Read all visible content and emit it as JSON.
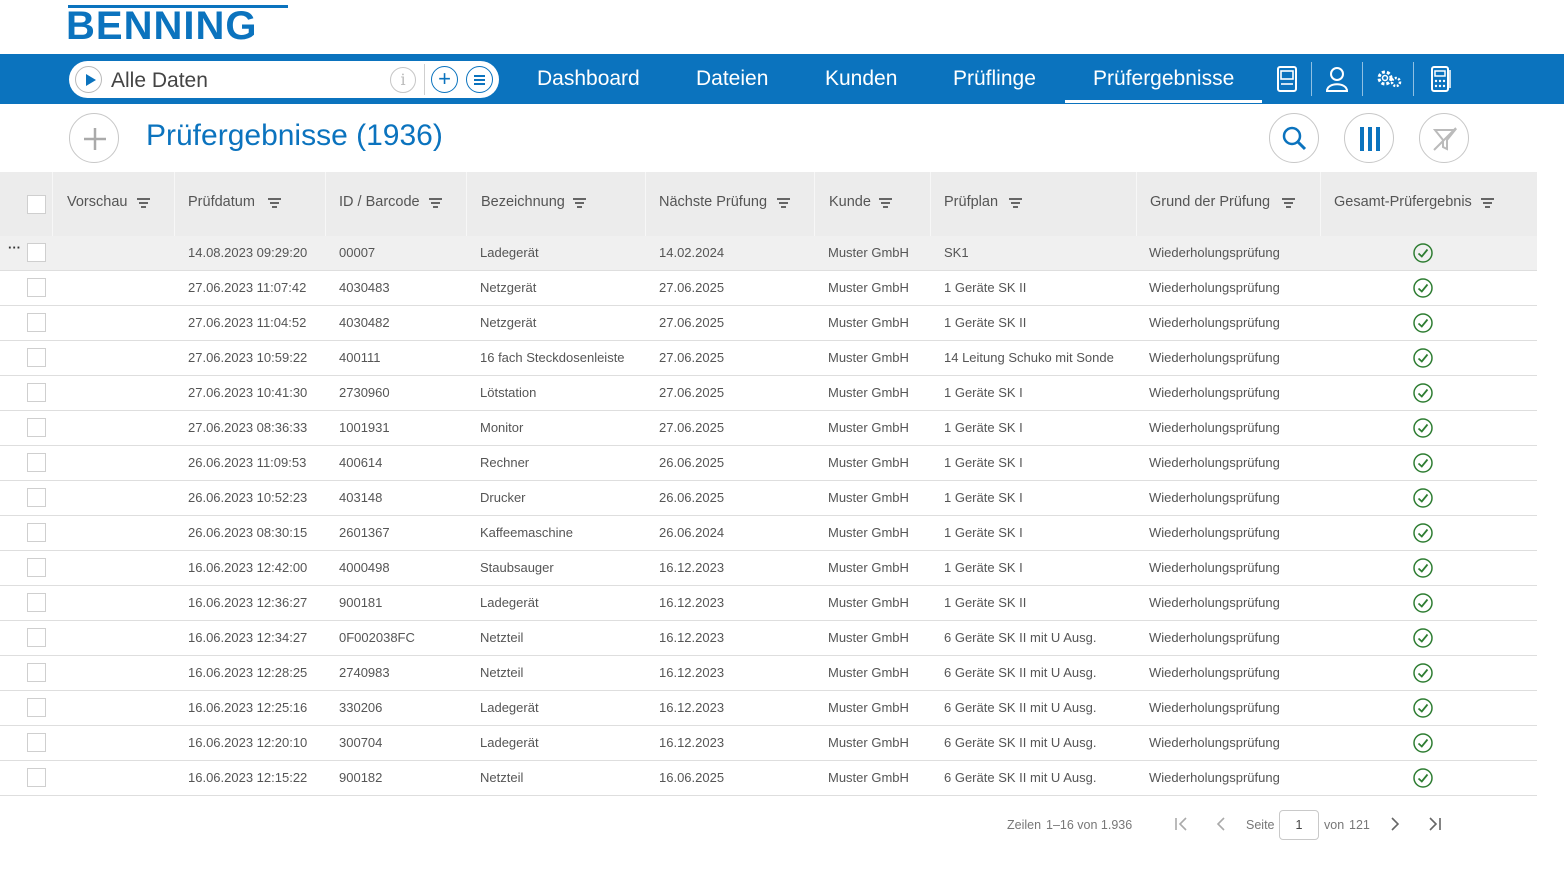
{
  "brand": {
    "logo_text": "BENNING",
    "color": "#0b73be"
  },
  "search": {
    "label": "Alle Daten",
    "info_icon": "info-icon",
    "add_icon": "plus-icon",
    "menu_icon": "list-icon"
  },
  "nav": {
    "items": [
      {
        "label": "Dashboard",
        "active": false
      },
      {
        "label": "Dateien",
        "active": false
      },
      {
        "label": "Kunden",
        "active": false
      },
      {
        "label": "Prüflinge",
        "active": false
      },
      {
        "label": "Prüfergebnisse",
        "active": true
      }
    ],
    "icons": [
      "device-icon",
      "user-icon",
      "settings-icon",
      "calculator-icon"
    ]
  },
  "page": {
    "title": "Prüfergebnisse (1936)"
  },
  "toolbar": {
    "add_icon": "plus-icon",
    "search_icon": "search-icon",
    "columns_icon": "columns-icon",
    "filter_clear_icon": "filter-off-icon"
  },
  "table": {
    "columns": [
      "Vorschau",
      "Prüfdatum",
      "ID / Barcode",
      "Bezeichnung",
      "Nächste Prüfung",
      "Kunde",
      "Prüfplan",
      "Grund der Prüfung",
      "Gesamt-Prüfergebnis"
    ],
    "rows": [
      [
        "14.08.2023 09:29:20",
        "00007",
        "Ladegerät",
        "14.02.2024",
        "Muster GmbH",
        "SK1",
        "Wiederholungsprüfung"
      ],
      [
        "27.06.2023 11:07:42",
        "4030483",
        "Netzgerät",
        "27.06.2025",
        "Muster GmbH",
        "1 Geräte SK II",
        "Wiederholungsprüfung"
      ],
      [
        "27.06.2023 11:04:52",
        "4030482",
        "Netzgerät",
        "27.06.2025",
        "Muster GmbH",
        "1 Geräte SK II",
        "Wiederholungsprüfung"
      ],
      [
        "27.06.2023 10:59:22",
        "400111",
        "16 fach Steckdosenleiste",
        "27.06.2025",
        "Muster GmbH",
        "14 Leitung Schuko mit Sonde",
        "Wiederholungsprüfung"
      ],
      [
        "27.06.2023 10:41:30",
        "2730960",
        "Lötstation",
        "27.06.2025",
        "Muster GmbH",
        "1 Geräte SK I",
        "Wiederholungsprüfung"
      ],
      [
        "27.06.2023 08:36:33",
        "1001931",
        "Monitor",
        "27.06.2025",
        "Muster GmbH",
        "1 Geräte SK I",
        "Wiederholungsprüfung"
      ],
      [
        "26.06.2023 11:09:53",
        "400614",
        "Rechner",
        "26.06.2025",
        "Muster GmbH",
        "1 Geräte SK I",
        "Wiederholungsprüfung"
      ],
      [
        "26.06.2023 10:52:23",
        "403148",
        "Drucker",
        "26.06.2025",
        "Muster GmbH",
        "1 Geräte SK I",
        "Wiederholungsprüfung"
      ],
      [
        "26.06.2023 08:30:15",
        "2601367",
        "Kaffeemaschine",
        "26.06.2024",
        "Muster GmbH",
        "1 Geräte SK I",
        "Wiederholungsprüfung"
      ],
      [
        "16.06.2023 12:42:00",
        "4000498",
        "Staubsauger",
        "16.12.2023",
        "Muster GmbH",
        "1 Geräte SK I",
        "Wiederholungsprüfung"
      ],
      [
        "16.06.2023 12:36:27",
        "900181",
        "Ladegerät",
        "16.12.2023",
        "Muster GmbH",
        "1 Geräte SK II",
        "Wiederholungsprüfung"
      ],
      [
        "16.06.2023 12:34:27",
        "0F002038FC",
        "Netzteil",
        "16.12.2023",
        "Muster GmbH",
        "6 Geräte SK II mit U Ausg.",
        "Wiederholungsprüfung"
      ],
      [
        "16.06.2023 12:28:25",
        "2740983",
        "Netzteil",
        "16.12.2023",
        "Muster GmbH",
        "6 Geräte SK II mit U Ausg.",
        "Wiederholungsprüfung"
      ],
      [
        "16.06.2023 12:25:16",
        "330206",
        "Ladegerät",
        "16.12.2023",
        "Muster GmbH",
        "6 Geräte SK II mit U Ausg.",
        "Wiederholungsprüfung"
      ],
      [
        "16.06.2023 12:20:10",
        "300704",
        "Ladegerät",
        "16.12.2023",
        "Muster GmbH",
        "6 Geräte SK II mit U Ausg.",
        "Wiederholungsprüfung"
      ],
      [
        "16.06.2023 12:15:22",
        "900182",
        " Netzteil",
        "16.06.2025",
        "Muster GmbH",
        "6 Geräte SK II mit U Ausg.",
        "Wiederholungsprüfung"
      ]
    ],
    "result_icon": "check-circle-icon",
    "result_color": "#2e7d32",
    "row_menu_label": "···"
  },
  "pager": {
    "rows_label": "Zeilen",
    "range": "1–16 von 1.936",
    "page_label": "Seite",
    "page": "1",
    "of_label": "von",
    "total_pages": "121"
  }
}
